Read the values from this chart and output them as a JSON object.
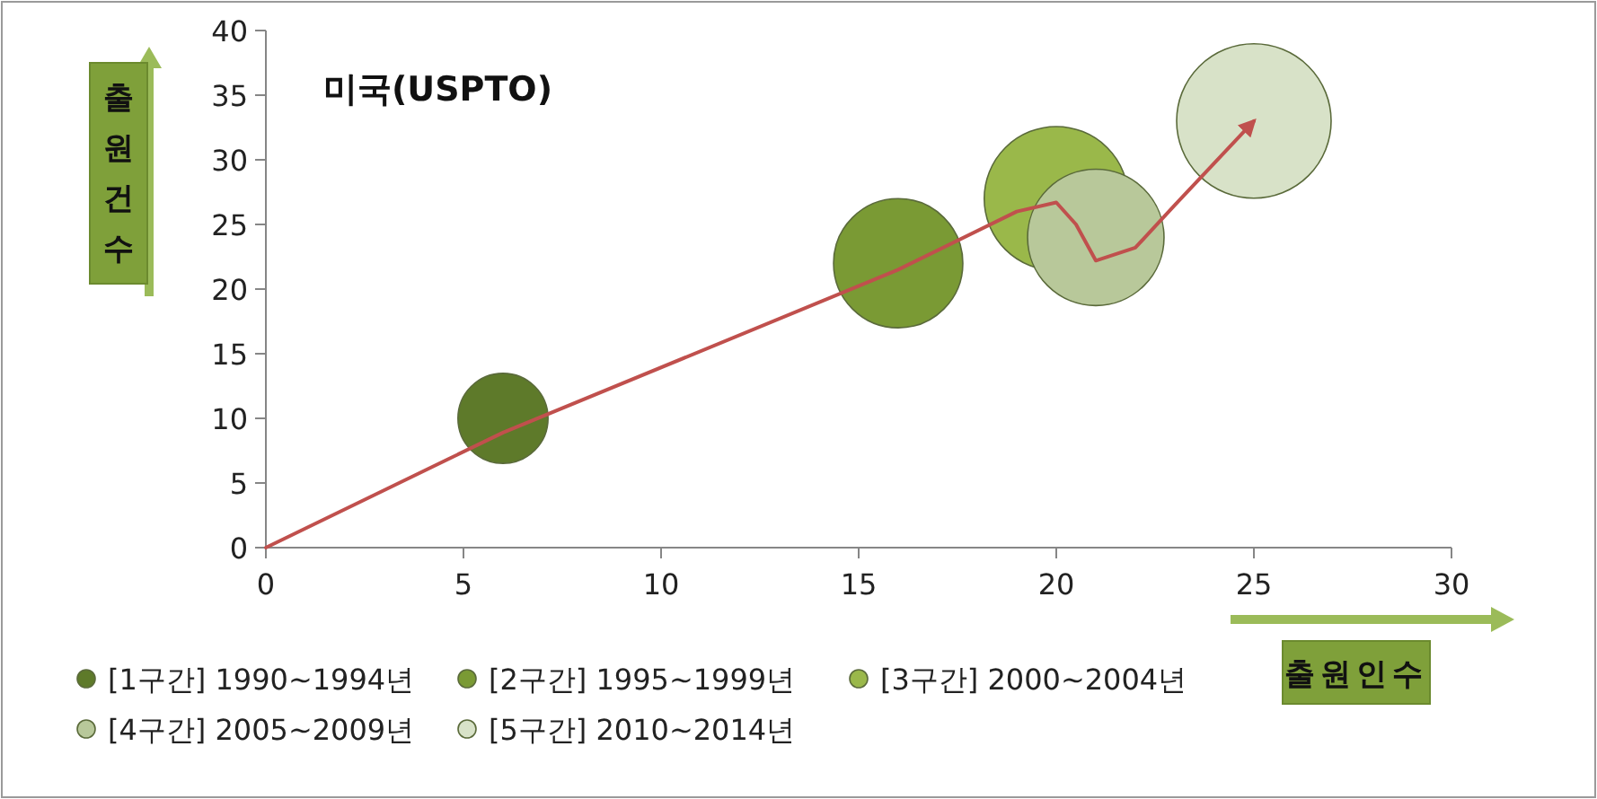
{
  "chart_data": {
    "type": "bubble",
    "title": "미국(USPTO)",
    "xlabel": "출원인수",
    "ylabel": "출원건수",
    "xlim": [
      0,
      30
    ],
    "xticks": [
      0,
      5,
      10,
      15,
      20,
      25,
      30
    ],
    "ylim": [
      0,
      40
    ],
    "yticks": [
      0,
      5,
      10,
      15,
      20,
      25,
      30,
      35,
      40
    ],
    "grid": false,
    "legend": "bottom left",
    "series": [
      {
        "name": "[1구간] 1990~1994년",
        "color": "#5e7a2a",
        "x": [
          6
        ],
        "values": [
          10
        ],
        "sizes": [
          0.34
        ]
      },
      {
        "name": "[2구간] 1995~1999년",
        "color": "#7a9a34",
        "x": [
          16
        ],
        "values": [
          22
        ],
        "sizes": [
          0.7
        ]
      },
      {
        "name": "[3구간] 2000~2004년",
        "color": "#9ab84a",
        "x": [
          20
        ],
        "values": [
          27
        ],
        "sizes": [
          0.87
        ]
      },
      {
        "name": "[4구간] 2005~2009년",
        "color": "#b8c89a",
        "x": [
          21
        ],
        "values": [
          24
        ],
        "sizes": [
          0.78
        ]
      },
      {
        "name": "[5구간] 2010~2014년",
        "color": "#d8e2c8",
        "x": [
          25
        ],
        "values": [
          33
        ],
        "sizes": [
          1
        ]
      },
      {
        "type": "line",
        "color": "#c0504d",
        "x": [
          0,
          6,
          16,
          19,
          20,
          20.5,
          21,
          22,
          23,
          25
        ],
        "values": [
          0,
          8.9,
          21.5,
          26,
          26.7,
          25,
          22.2,
          23.2,
          26.5,
          33
        ]
      }
    ]
  }
}
